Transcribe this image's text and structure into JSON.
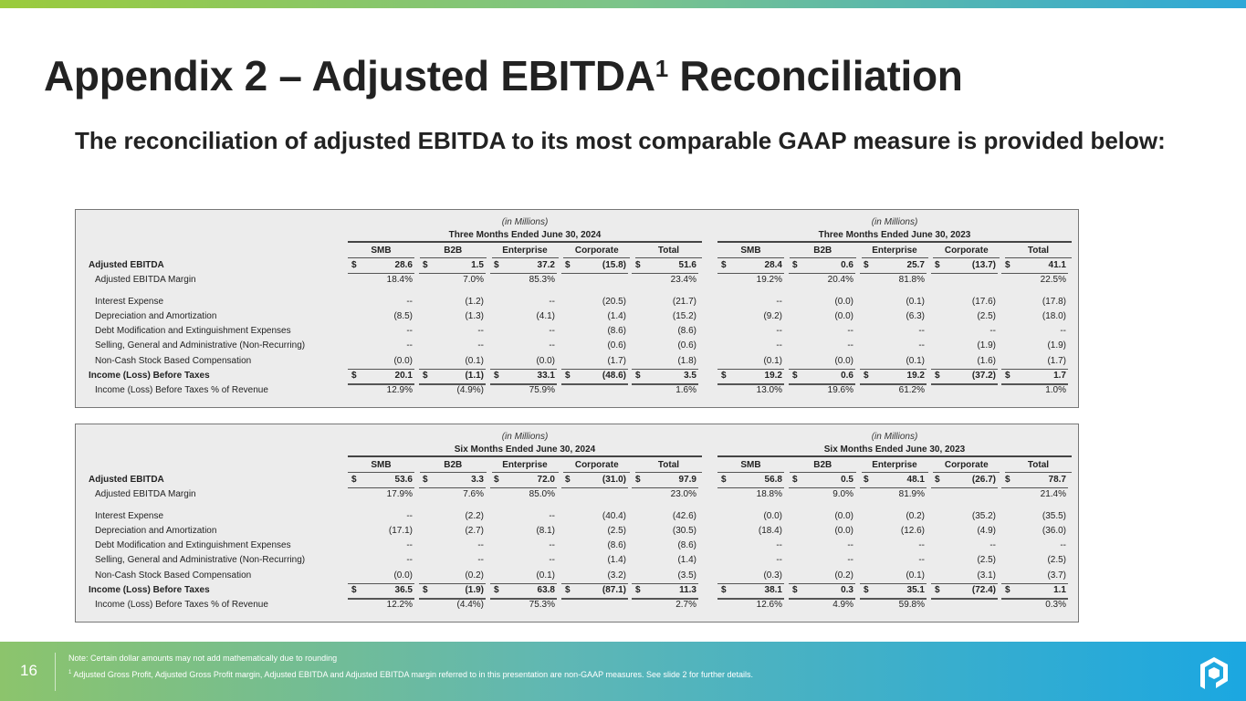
{
  "slide": {
    "title": "Appendix 2 – Adjusted EBITDA",
    "title_sup": "1",
    "title_rest": " Reconciliation",
    "subtitle": "The reconciliation of adjusted EBITDA to its most comparable GAAP measure is provided below:"
  },
  "columns": [
    "SMB",
    "B2B",
    "Enterprise",
    "Corporate",
    "Total"
  ],
  "units": "(in Millions)",
  "row_labels": [
    "Adjusted EBITDA",
    "Adjusted EBITDA Margin",
    "Interest Expense",
    "Depreciation and Amortization",
    "Debt Modification and Extinguishment Expenses",
    "Selling, General and Administrative (Non-Recurring)",
    "Non-Cash Stock Based Compensation",
    "Income (Loss) Before Taxes",
    "Income (Loss) Before Taxes % of Revenue"
  ],
  "tables": [
    {
      "periods": [
        "Three Months Ended June 30, 2024",
        "Three Months Ended June 30, 2023"
      ],
      "values": [
        [
          [
            "28.6",
            "1.5",
            "37.2",
            "(15.8)",
            "51.6"
          ],
          [
            "28.4",
            "0.6",
            "25.7",
            "(13.7)",
            "41.1"
          ]
        ],
        [
          [
            "18.4%",
            "7.0%",
            "85.3%",
            "",
            "23.4%"
          ],
          [
            "19.2%",
            "20.4%",
            "81.8%",
            "",
            "22.5%"
          ]
        ],
        [
          [
            "--",
            "(1.2)",
            "--",
            "(20.5)",
            "(21.7)"
          ],
          [
            "--",
            "(0.0)",
            "(0.1)",
            "(17.6)",
            "(17.8)"
          ]
        ],
        [
          [
            "(8.5)",
            "(1.3)",
            "(4.1)",
            "(1.4)",
            "(15.2)"
          ],
          [
            "(9.2)",
            "(0.0)",
            "(6.3)",
            "(2.5)",
            "(18.0)"
          ]
        ],
        [
          [
            "--",
            "--",
            "--",
            "(8.6)",
            "(8.6)"
          ],
          [
            "--",
            "--",
            "--",
            "--",
            "--"
          ]
        ],
        [
          [
            "--",
            "--",
            "--",
            "(0.6)",
            "(0.6)"
          ],
          [
            "--",
            "--",
            "--",
            "(1.9)",
            "(1.9)"
          ]
        ],
        [
          [
            "(0.0)",
            "(0.1)",
            "(0.0)",
            "(1.7)",
            "(1.8)"
          ],
          [
            "(0.1)",
            "(0.0)",
            "(0.1)",
            "(1.6)",
            "(1.7)"
          ]
        ],
        [
          [
            "20.1",
            "(1.1)",
            "33.1",
            "(48.6)",
            "3.5"
          ],
          [
            "19.2",
            "0.6",
            "19.2",
            "(37.2)",
            "1.7"
          ]
        ],
        [
          [
            "12.9%",
            "(4.9%)",
            "75.9%",
            "",
            "1.6%"
          ],
          [
            "13.0%",
            "19.6%",
            "61.2%",
            "",
            "1.0%"
          ]
        ]
      ]
    },
    {
      "periods": [
        "Six Months Ended June 30, 2024",
        "Six Months Ended June 30, 2023"
      ],
      "values": [
        [
          [
            "53.6",
            "3.3",
            "72.0",
            "(31.0)",
            "97.9"
          ],
          [
            "56.8",
            "0.5",
            "48.1",
            "(26.7)",
            "78.7"
          ]
        ],
        [
          [
            "17.9%",
            "7.6%",
            "85.0%",
            "",
            "23.0%"
          ],
          [
            "18.8%",
            "9.0%",
            "81.9%",
            "",
            "21.4%"
          ]
        ],
        [
          [
            "--",
            "(2.2)",
            "--",
            "(40.4)",
            "(42.6)"
          ],
          [
            "(0.0)",
            "(0.0)",
            "(0.2)",
            "(35.2)",
            "(35.5)"
          ]
        ],
        [
          [
            "(17.1)",
            "(2.7)",
            "(8.1)",
            "(2.5)",
            "(30.5)"
          ],
          [
            "(18.4)",
            "(0.0)",
            "(12.6)",
            "(4.9)",
            "(36.0)"
          ]
        ],
        [
          [
            "--",
            "--",
            "--",
            "(8.6)",
            "(8.6)"
          ],
          [
            "--",
            "--",
            "--",
            "--",
            "--"
          ]
        ],
        [
          [
            "--",
            "--",
            "--",
            "(1.4)",
            "(1.4)"
          ],
          [
            "--",
            "--",
            "--",
            "(2.5)",
            "(2.5)"
          ]
        ],
        [
          [
            "(0.0)",
            "(0.2)",
            "(0.1)",
            "(3.2)",
            "(3.5)"
          ],
          [
            "(0.3)",
            "(0.2)",
            "(0.1)",
            "(3.1)",
            "(3.7)"
          ]
        ],
        [
          [
            "36.5",
            "(1.9)",
            "63.8",
            "(87.1)",
            "11.3"
          ],
          [
            "38.1",
            "0.3",
            "35.1",
            "(72.4)",
            "1.1"
          ]
        ],
        [
          [
            "12.2%",
            "(4.4%)",
            "75.3%",
            "",
            "2.7%"
          ],
          [
            "12.6%",
            "4.9%",
            "59.8%",
            "",
            "0.3%"
          ]
        ]
      ]
    }
  ],
  "currency_symbol": "$",
  "footer": {
    "page_number": "16",
    "note": "Note: Certain dollar amounts may not add mathematically due to rounding",
    "footnote_mark": "1",
    "footnote": " Adjusted Gross Profit, Adjusted Gross Profit margin, Adjusted EBITDA and Adjusted EBITDA margin referred to in this presentation are non-GAAP measures. See slide 2 for further details."
  },
  "colors": {
    "text": "#222222",
    "panel": "#ececec",
    "footer_start": "#8cc46c",
    "footer_end": "#1ba7e1"
  }
}
